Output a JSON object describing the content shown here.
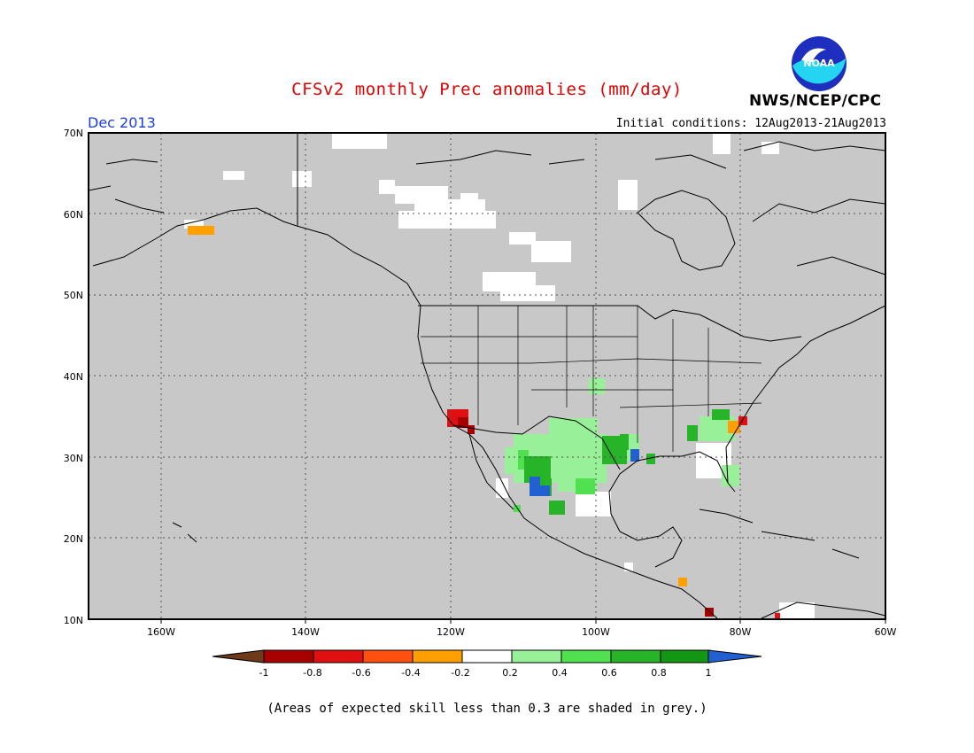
{
  "title": "CFSv2 monthly Prec anomalies (mm/day)",
  "agency": "NWS/NCEP/CPC",
  "logo_text": "NOAA",
  "target_month": "Dec 2013",
  "initial_conditions": "Initial conditions: 12Aug2013-21Aug2013",
  "footnote": "(Areas of expected skill less than 0.3 are shaded in grey.)",
  "map": {
    "lon_range": [
      -170,
      -60
    ],
    "lat_range": [
      10,
      70
    ],
    "lat_labels": [
      "70N",
      "60N",
      "50N",
      "40N",
      "30N",
      "20N",
      "10N"
    ],
    "lon_labels": [
      "160W",
      "140W",
      "120W",
      "100W",
      "80W",
      "60W"
    ],
    "background_color": "#c8c8c8",
    "grid": "dotted"
  },
  "colorbar": {
    "ticks": [
      "-1",
      "-0.8",
      "-0.6",
      "-0.4",
      "-0.2",
      "0.2",
      "0.4",
      "0.6",
      "0.8",
      "1"
    ],
    "low_arrow_color": "#6e3a1a",
    "colors": [
      "#a80000",
      "#e01010",
      "#ff5010",
      "#ffa000",
      "#ffffff",
      "#98f098",
      "#50e050",
      "#28b428",
      "#139613"
    ],
    "high_arrow_color": "#2060d0"
  }
}
